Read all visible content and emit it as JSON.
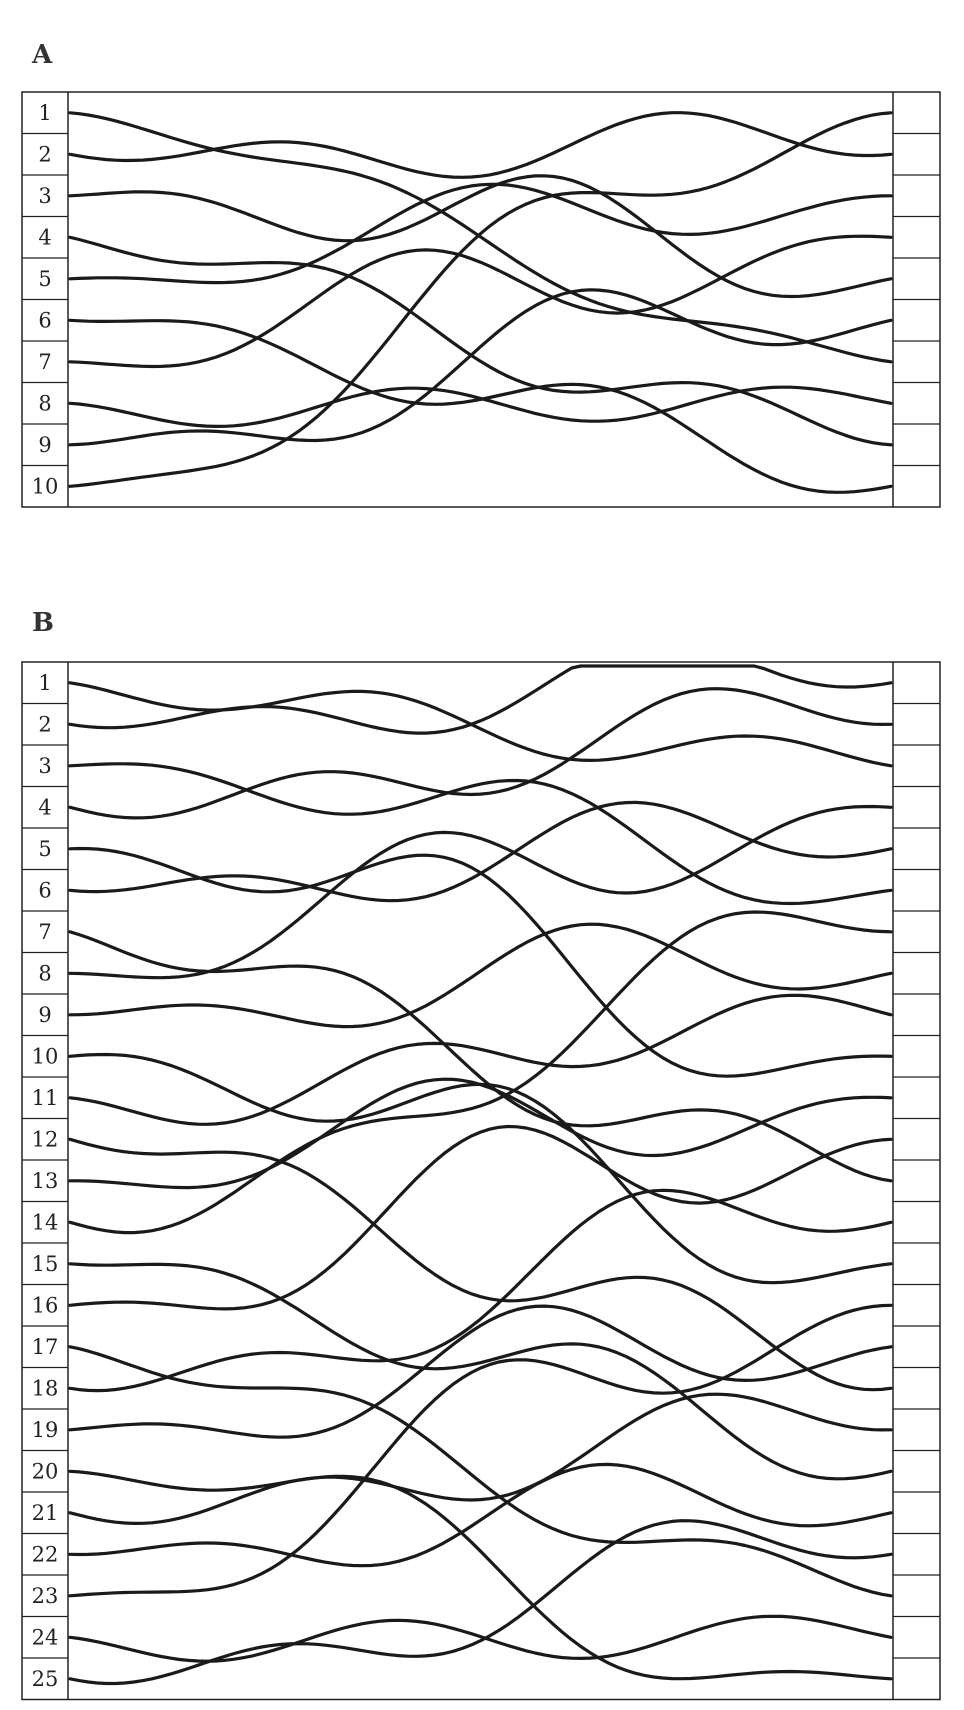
{
  "panels": [
    {
      "label": "A",
      "rows": [
        "1",
        "2",
        "3",
        "4",
        "5",
        "6",
        "7",
        "8",
        "9",
        "10"
      ],
      "lines": [
        {
          "start_row": 1,
          "end_row": 7,
          "wiggle": 0.55,
          "phase": 0.3
        },
        {
          "start_row": 2,
          "end_row": 2,
          "wiggle": 0.8,
          "phase": 1.1
        },
        {
          "start_row": 3,
          "end_row": 5,
          "wiggle": 1.0,
          "phase": 2.0
        },
        {
          "start_row": 4,
          "end_row": 9,
          "wiggle": 0.9,
          "phase": 0.7
        },
        {
          "start_row": 5,
          "end_row": 3,
          "wiggle": 0.7,
          "phase": 2.6
        },
        {
          "start_row": 6,
          "end_row": 10,
          "wiggle": 0.8,
          "phase": 1.6
        },
        {
          "start_row": 7,
          "end_row": 4,
          "wiggle": 0.9,
          "phase": 3.1
        },
        {
          "start_row": 8,
          "end_row": 8,
          "wiggle": 0.7,
          "phase": 0.2
        },
        {
          "start_row": 9,
          "end_row": 6,
          "wiggle": 1.0,
          "phase": 1.9
        },
        {
          "start_row": 10,
          "end_row": 1,
          "wiggle": 0.9,
          "phase": 2.4
        }
      ]
    },
    {
      "label": "B",
      "rows": [
        "1",
        "2",
        "3",
        "4",
        "5",
        "6",
        "7",
        "8",
        "9",
        "10",
        "11",
        "12",
        "13",
        "14",
        "15",
        "16",
        "17",
        "18",
        "19",
        "20",
        "21",
        "22",
        "23",
        "24",
        "25"
      ],
      "lines": [
        {
          "start_row": 1,
          "end_row": 3,
          "wiggle": 0.8,
          "phase": 0.4
        },
        {
          "start_row": 2,
          "end_row": 1,
          "wiggle": 0.9,
          "phase": 1.3
        },
        {
          "start_row": 3,
          "end_row": 6,
          "wiggle": 0.8,
          "phase": 2.1
        },
        {
          "start_row": 4,
          "end_row": 2,
          "wiggle": 1.0,
          "phase": 0.9
        },
        {
          "start_row": 5,
          "end_row": 10,
          "wiggle": 1.1,
          "phase": 2.7
        },
        {
          "start_row": 6,
          "end_row": 5,
          "wiggle": 0.9,
          "phase": 1.5
        },
        {
          "start_row": 7,
          "end_row": 13,
          "wiggle": 1.2,
          "phase": 0.6
        },
        {
          "start_row": 8,
          "end_row": 4,
          "wiggle": 1.0,
          "phase": 3.0
        },
        {
          "start_row": 9,
          "end_row": 8,
          "wiggle": 0.9,
          "phase": 1.8
        },
        {
          "start_row": 10,
          "end_row": 15,
          "wiggle": 1.1,
          "phase": 2.3
        },
        {
          "start_row": 11,
          "end_row": 9,
          "wiggle": 1.0,
          "phase": 0.2
        },
        {
          "start_row": 12,
          "end_row": 18,
          "wiggle": 1.2,
          "phase": 1.1
        },
        {
          "start_row": 13,
          "end_row": 11,
          "wiggle": 0.9,
          "phase": 2.9
        },
        {
          "start_row": 14,
          "end_row": 7,
          "wiggle": 1.1,
          "phase": 0.8
        },
        {
          "start_row": 15,
          "end_row": 20,
          "wiggle": 1.0,
          "phase": 1.6
        },
        {
          "start_row": 16,
          "end_row": 12,
          "wiggle": 1.2,
          "phase": 2.5
        },
        {
          "start_row": 17,
          "end_row": 23,
          "wiggle": 0.9,
          "phase": 0.5
        },
        {
          "start_row": 18,
          "end_row": 14,
          "wiggle": 1.1,
          "phase": 1.4
        },
        {
          "start_row": 19,
          "end_row": 17,
          "wiggle": 1.0,
          "phase": 2.2
        },
        {
          "start_row": 20,
          "end_row": 25,
          "wiggle": 0.8,
          "phase": 3.2
        },
        {
          "start_row": 21,
          "end_row": 19,
          "wiggle": 1.0,
          "phase": 0.9
        },
        {
          "start_row": 22,
          "end_row": 21,
          "wiggle": 0.9,
          "phase": 1.7
        },
        {
          "start_row": 23,
          "end_row": 16,
          "wiggle": 1.1,
          "phase": 2.6
        },
        {
          "start_row": 24,
          "end_row": 24,
          "wiggle": 0.8,
          "phase": 0.3
        },
        {
          "start_row": 25,
          "end_row": 22,
          "wiggle": 1.0,
          "phase": 1.2
        }
      ]
    }
  ]
}
